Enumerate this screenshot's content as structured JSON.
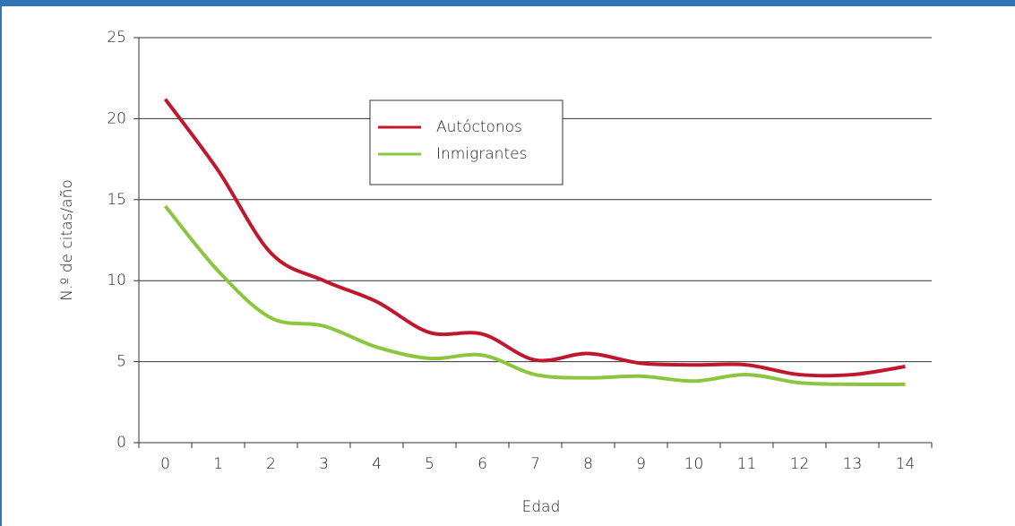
{
  "chart_data": {
    "type": "line",
    "x_label": "Edad",
    "y_label": "N.º de citas/año",
    "categories": [
      "0",
      "1",
      "2",
      "3",
      "4",
      "5",
      "6",
      "7",
      "8",
      "9",
      "10",
      "11",
      "12",
      "13",
      "14"
    ],
    "series": [
      {
        "name": "Autóctonos",
        "color": "#c0172f",
        "values": [
          21.2,
          16.8,
          11.7,
          10.0,
          8.7,
          6.8,
          6.7,
          5.1,
          5.5,
          4.9,
          4.8,
          4.8,
          4.2,
          4.2,
          4.7
        ]
      },
      {
        "name": "Inmigrantes",
        "color": "#8cc63f",
        "values": [
          14.6,
          10.6,
          7.7,
          7.2,
          5.9,
          5.2,
          5.4,
          4.2,
          4.0,
          4.1,
          3.8,
          4.2,
          3.7,
          3.6,
          3.6
        ]
      }
    ],
    "ylim": [
      0,
      25
    ],
    "yticks": [
      0,
      5,
      10,
      15,
      20,
      25
    ],
    "grid": true
  }
}
